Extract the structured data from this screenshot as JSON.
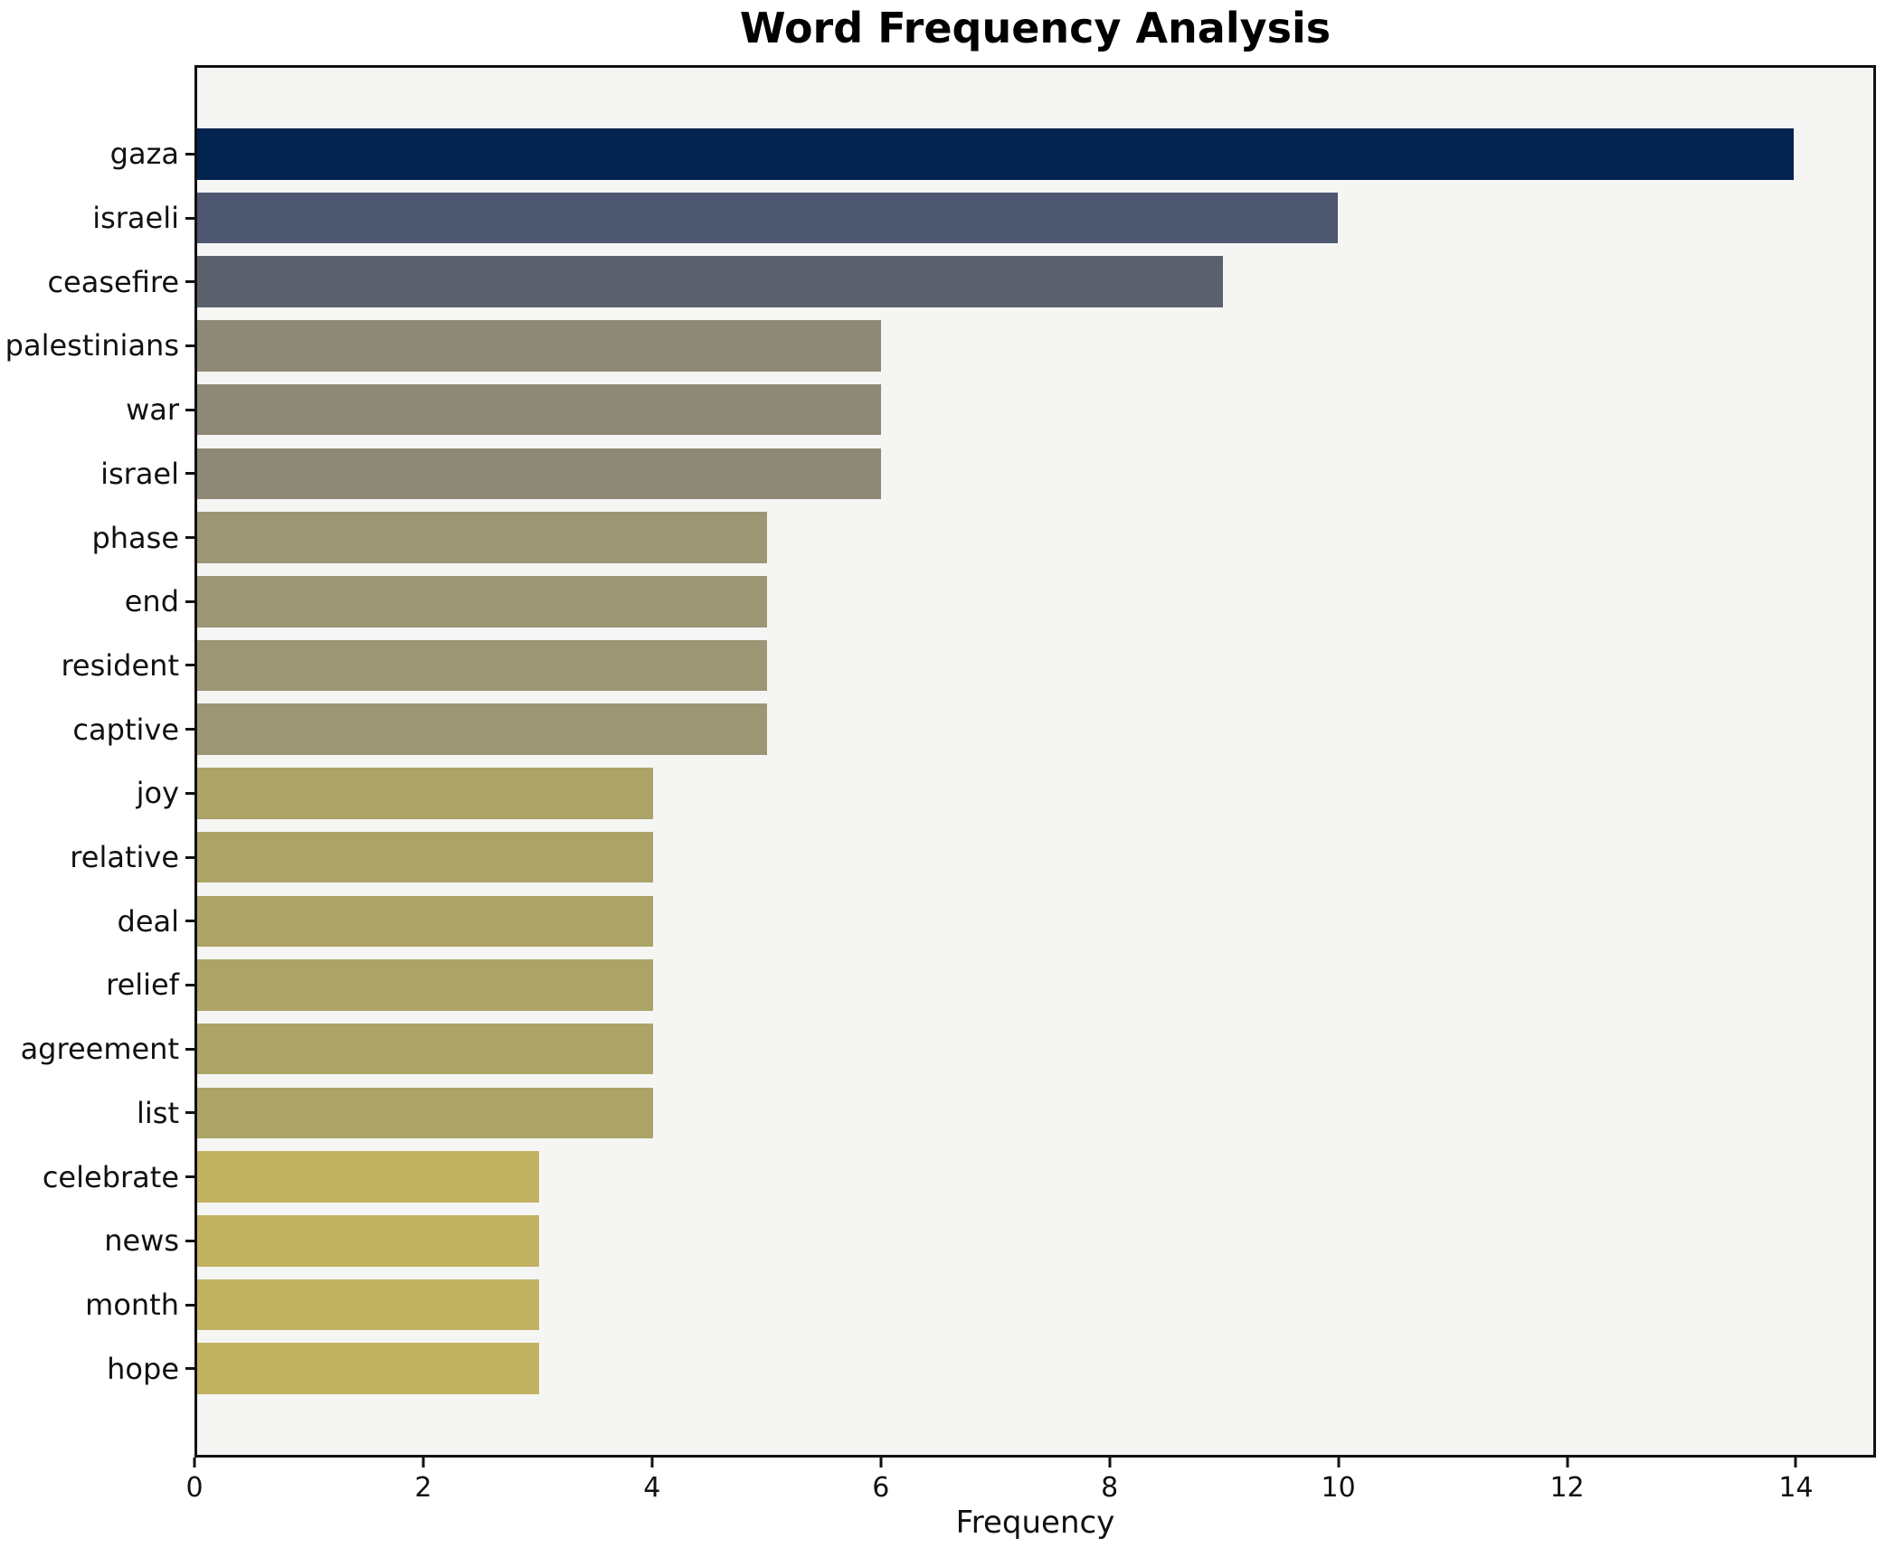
{
  "chart_data": {
    "type": "bar",
    "orientation": "horizontal",
    "title": "Word Frequency Analysis",
    "xlabel": "Frequency",
    "ylabel": "",
    "categories": [
      "gaza",
      "israeli",
      "ceasefire",
      "palestinians",
      "war",
      "israel",
      "phase",
      "end",
      "resident",
      "captive",
      "joy",
      "relative",
      "deal",
      "relief",
      "agreement",
      "list",
      "celebrate",
      "news",
      "month",
      "hope"
    ],
    "values": [
      14,
      10,
      9,
      6,
      6,
      6,
      5,
      5,
      5,
      5,
      4,
      4,
      4,
      4,
      4,
      4,
      3,
      3,
      3,
      3
    ],
    "bar_colors": [
      "#02224f",
      "#4d5870",
      "#5b616c",
      "#8e8977",
      "#8e8977",
      "#8e8977",
      "#9d9674",
      "#9d9674",
      "#9d9674",
      "#9d9674",
      "#aca466",
      "#aca466",
      "#aca466",
      "#aca466",
      "#aca466",
      "#aca466",
      "#c1b262",
      "#c1b262",
      "#c1b262",
      "#c1b262"
    ],
    "xlim": [
      0,
      14.7
    ],
    "xticks": [
      0,
      2,
      4,
      6,
      8,
      10,
      12,
      14
    ],
    "grid": false,
    "legend": null,
    "plot_background": "#f5f5f4",
    "figure_background": "#ffffff",
    "spine_color": "#111111"
  }
}
